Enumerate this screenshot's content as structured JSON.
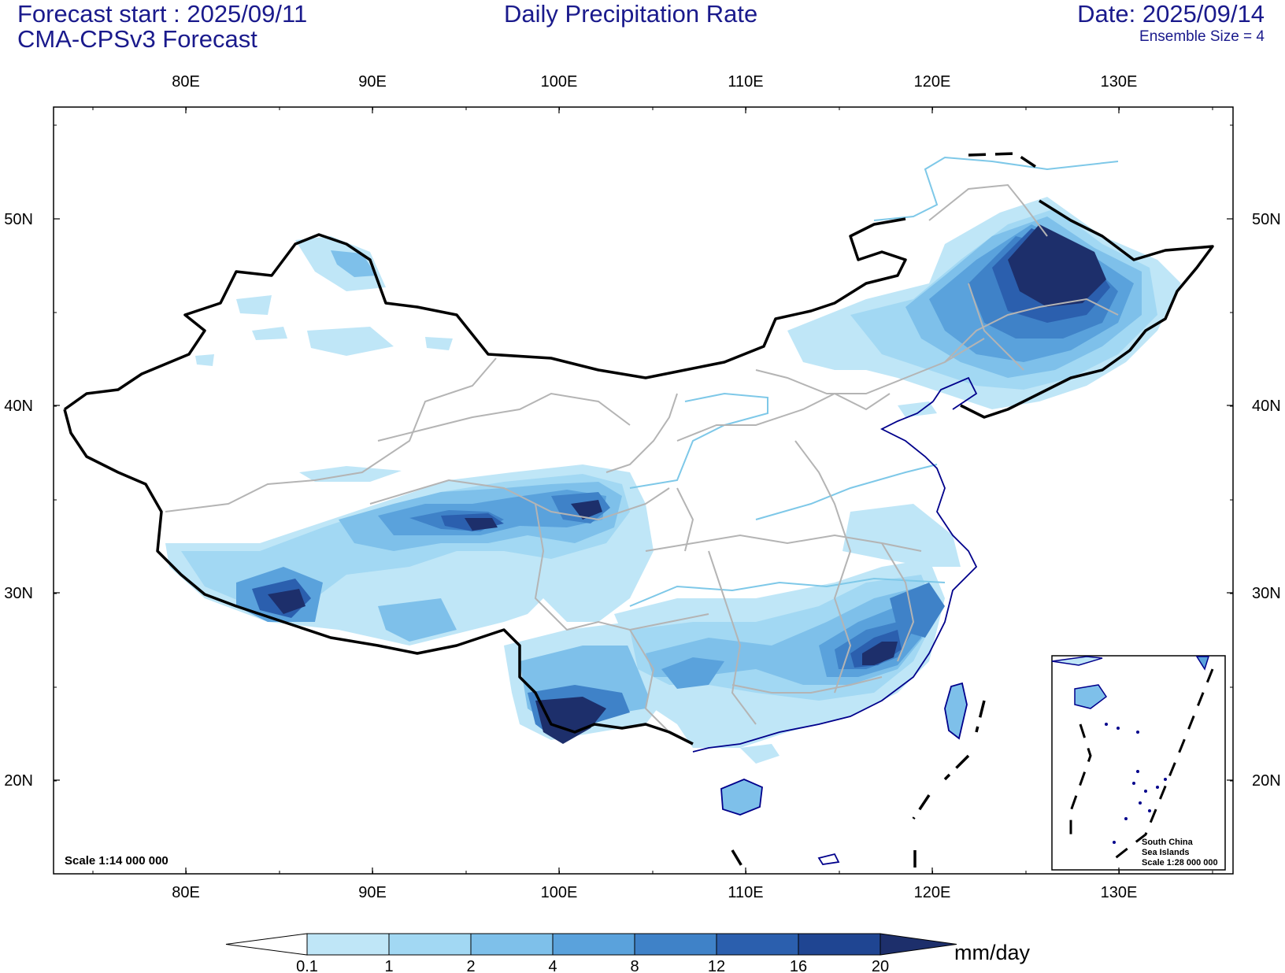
{
  "header": {
    "forecast_start": "Forecast start : 2025/09/11",
    "model": "CMA-CPSv3 Forecast",
    "title": "Daily Precipitation Rate",
    "date": "Date: 2025/09/14",
    "ensemble": "Ensemble Size = 4"
  },
  "axes": {
    "lon_labels": [
      "80E",
      "90E",
      "100E",
      "110E",
      "120E",
      "130E"
    ],
    "lat_labels": [
      "20N",
      "30N",
      "40N",
      "50N"
    ]
  },
  "scale_text": "Scale 1:14 000 000",
  "inset": {
    "line1": "South China",
    "line2": "Sea Islands",
    "line3": "Scale 1:28 000 000"
  },
  "colorbar": {
    "unit": "mm/day",
    "labels": [
      "0.1",
      "1",
      "2",
      "4",
      "8",
      "12",
      "16",
      "20"
    ],
    "colors": [
      "#ffffff",
      "#bfe6f7",
      "#a2d8f3",
      "#7ec0ea",
      "#5aa2dc",
      "#3f82c8",
      "#2b5fae",
      "#1f4592",
      "#1d2f6b"
    ]
  },
  "colors": {
    "title": "#1a1a8c",
    "border": "#000000",
    "province": "#b4b4b4",
    "river": "#7ec8e8",
    "coast": "#00008b"
  }
}
